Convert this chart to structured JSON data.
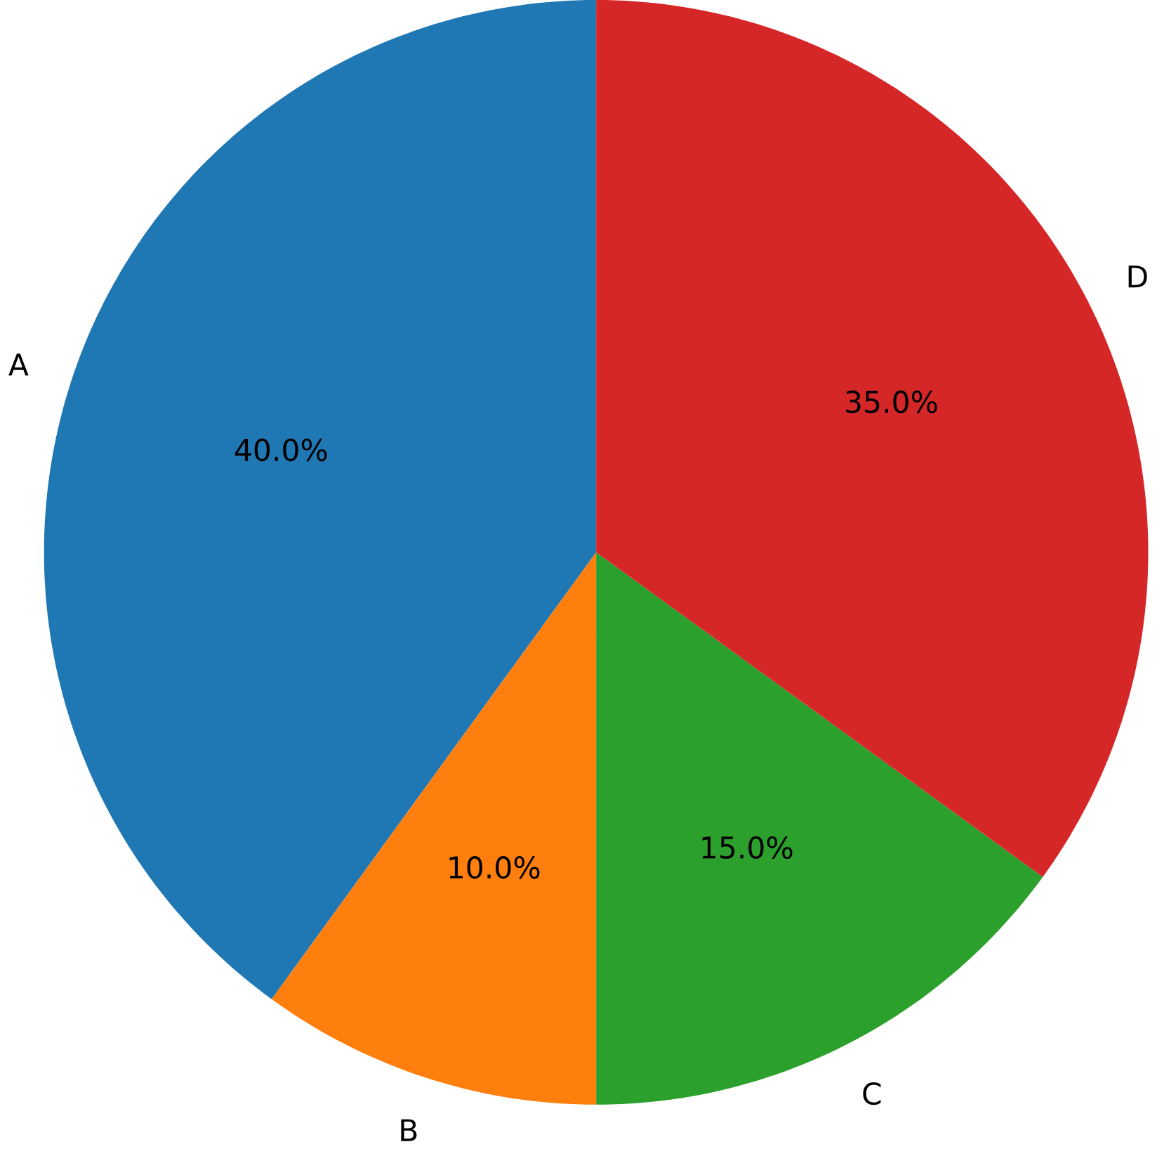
{
  "chart_data": {
    "type": "pie",
    "categories": [
      "A",
      "B",
      "C",
      "D"
    ],
    "values": [
      40,
      10,
      15,
      35
    ],
    "value_labels": [
      "40.0%",
      "10.0%",
      "15.0%",
      "35.0%"
    ],
    "colors": [
      "#1f77b4",
      "#ff7f0e",
      "#2ca02c",
      "#d62728"
    ]
  }
}
